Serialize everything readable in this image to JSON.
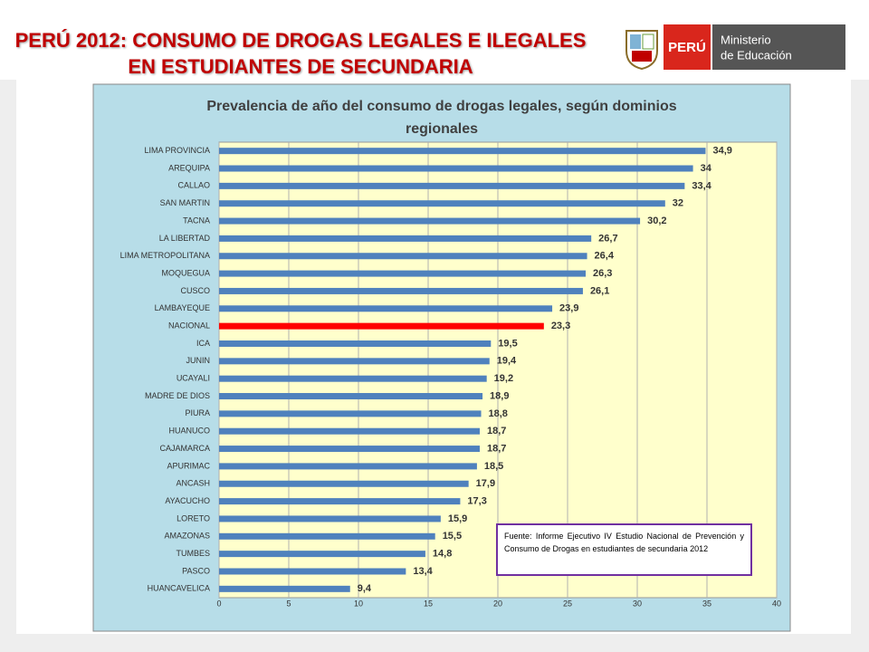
{
  "header": {
    "title_lines": [
      "PERÚ 2012: CONSUMO DE DROGAS LEGALES E ILEGALES",
      "EN ESTUDIANTES DE SECUNDARIA"
    ],
    "logo": {
      "country": "PERÚ",
      "ministry_lines": [
        "Ministerio",
        "de Educación"
      ]
    }
  },
  "chart_data": {
    "type": "hbar",
    "title_lines": [
      "Prevalencia de año del consumo de drogas legales, según dominios",
      "regionales"
    ],
    "categories": [
      "LIMA PROVINCIA",
      "AREQUIPA",
      "CALLAO",
      "SAN MARTIN",
      "TACNA",
      "LA LIBERTAD",
      "LIMA METROPOLITANA",
      "MOQUEGUA",
      "CUSCO",
      "LAMBAYEQUE",
      "NACIONAL",
      "ICA",
      "JUNIN",
      "UCAYALI",
      "MADRE DE DIOS",
      "PIURA",
      "HUANUCO",
      "CAJAMARCA",
      "APURIMAC",
      "ANCASH",
      "AYACUCHO",
      "LORETO",
      "AMAZONAS",
      "TUMBES",
      "PASCO",
      "HUANCAVELICA"
    ],
    "values": [
      34.9,
      34,
      33.4,
      32,
      30.2,
      26.7,
      26.4,
      26.3,
      26.1,
      23.9,
      23.3,
      19.5,
      19.4,
      19.2,
      18.9,
      18.8,
      18.7,
      18.7,
      18.5,
      17.9,
      17.3,
      15.9,
      15.5,
      14.8,
      13.4,
      9.4
    ],
    "value_labels": [
      "34,9",
      "34",
      "33,4",
      "32",
      "30,2",
      "26,7",
      "26,4",
      "26,3",
      "26,1",
      "23,9",
      "23,3",
      "19,5",
      "19,4",
      "19,2",
      "18,9",
      "18,8",
      "18,7",
      "18,7",
      "18,5",
      "17,9",
      "17,3",
      "15,9",
      "15,5",
      "14,8",
      "13,4",
      "9,4"
    ],
    "colors": [
      "#4f81bd",
      "#4f81bd",
      "#4f81bd",
      "#4f81bd",
      "#4f81bd",
      "#4f81bd",
      "#4f81bd",
      "#4f81bd",
      "#4f81bd",
      "#4f81bd",
      "#ff0000",
      "#4f81bd",
      "#4f81bd",
      "#4f81bd",
      "#4f81bd",
      "#4f81bd",
      "#4f81bd",
      "#4f81bd",
      "#4f81bd",
      "#4f81bd",
      "#4f81bd",
      "#4f81bd",
      "#4f81bd",
      "#4f81bd",
      "#4f81bd",
      "#4f81bd"
    ],
    "xlim": [
      0,
      40
    ],
    "xticks": [
      0,
      5,
      10,
      15,
      20,
      25,
      30,
      35,
      40
    ],
    "grid": true,
    "annotation": "Fuente: Informe Ejecutivo IV Estudio Nacional de Prevención y Consumo de Drogas en estudiantes de secundaria 2012"
  }
}
